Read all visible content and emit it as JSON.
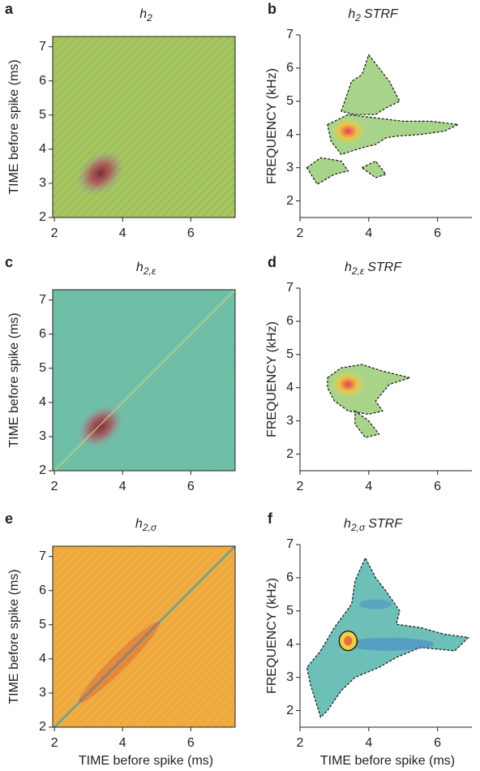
{
  "chart_data": [
    {
      "type": "heatmap",
      "panel_label": "a",
      "title": "h",
      "title_subscript": "2",
      "xlim": [
        1.95,
        7.3
      ],
      "ylim": [
        2,
        7.3
      ],
      "xticks": [
        2,
        4,
        6
      ],
      "yticks": [
        2,
        3,
        4,
        5,
        6,
        7
      ],
      "ylabel": "TIME before spike (ms)"
    },
    {
      "type": "contour",
      "panel_label": "b",
      "title": "h",
      "title_subscript": "2",
      "title_suffix": "STRF",
      "xlim": [
        2,
        7
      ],
      "ylim": [
        1.5,
        7
      ],
      "xticks": [
        2,
        4,
        6
      ],
      "yticks": [
        2,
        3,
        4,
        5,
        6,
        7
      ],
      "ylabel": "FREQUENCY (kHz)"
    },
    {
      "type": "heatmap",
      "panel_label": "c",
      "title": "h",
      "title_subscript": "2,ε",
      "xlim": [
        1.95,
        7.3
      ],
      "ylim": [
        2,
        7.3
      ],
      "xticks": [
        2,
        4,
        6
      ],
      "yticks": [
        2,
        3,
        4,
        5,
        6,
        7
      ],
      "ylabel": "TIME before spike (ms)"
    },
    {
      "type": "contour",
      "panel_label": "d",
      "title": "h",
      "title_subscript": "2,ε",
      "title_suffix": "STRF",
      "xlim": [
        2,
        7
      ],
      "ylim": [
        1.5,
        7
      ],
      "xticks": [
        2,
        4,
        6
      ],
      "yticks": [
        2,
        3,
        4,
        5,
        6,
        7
      ],
      "ylabel": "FREQUENCY (kHz)"
    },
    {
      "type": "heatmap",
      "panel_label": "e",
      "title": "h",
      "title_subscript": "2,σ",
      "xlim": [
        1.95,
        7.3
      ],
      "ylim": [
        2,
        7.3
      ],
      "xticks": [
        2,
        4,
        6
      ],
      "yticks": [
        2,
        3,
        4,
        5,
        6,
        7
      ],
      "ylabel": "TIME before spike (ms)",
      "xlabel": "TIME before spike (ms)"
    },
    {
      "type": "contour",
      "panel_label": "f",
      "title": "h",
      "title_subscript": "2,σ",
      "title_suffix": "STRF",
      "xlim": [
        2,
        7
      ],
      "ylim": [
        1.5,
        7
      ],
      "xticks": [
        2,
        4,
        6
      ],
      "yticks": [
        2,
        3,
        4,
        5,
        6,
        7
      ],
      "ylabel": "FREQUENCY (kHz)",
      "xlabel": "TIME before spike (ms)"
    }
  ]
}
